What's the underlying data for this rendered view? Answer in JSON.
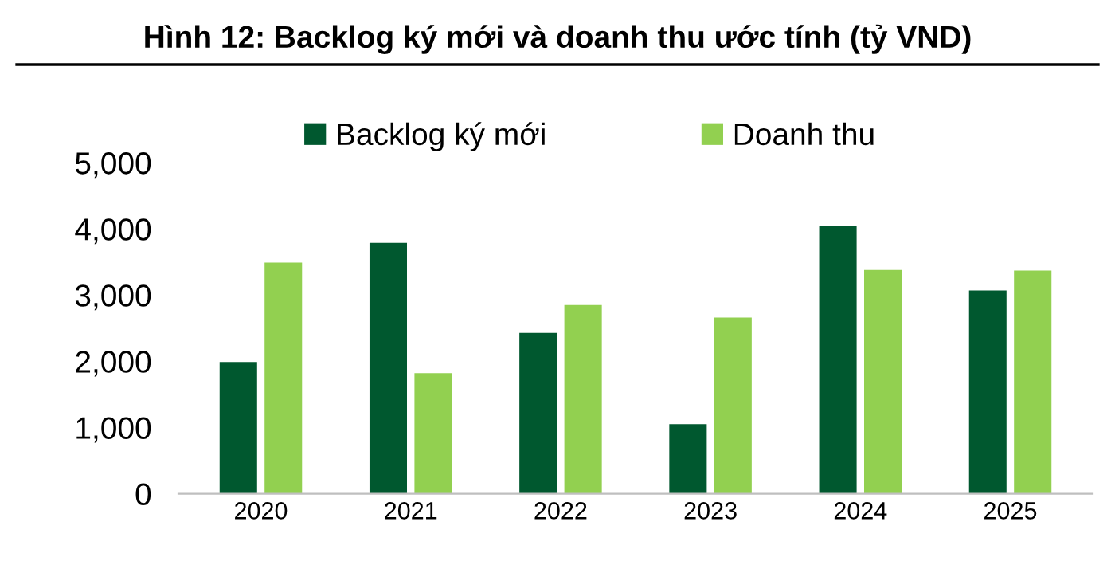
{
  "chart_data": {
    "type": "bar",
    "title": "Hình 12: Backlog ký mới và doanh thu ước tính (tỷ VND)",
    "categories": [
      "2020",
      "2021",
      "2022",
      "2023",
      "2024",
      "2025"
    ],
    "series": [
      {
        "name": "Backlog ký mới",
        "color": "#00582f",
        "values": [
          1990,
          3790,
          2430,
          1050,
          4040,
          3070
        ]
      },
      {
        "name": "Doanh thu",
        "color": "#92d050",
        "values": [
          3490,
          1820,
          2850,
          2660,
          3380,
          3370
        ]
      }
    ],
    "ylim": [
      0,
      5000
    ],
    "yticks": [
      {
        "value": 0,
        "label": "0"
      },
      {
        "value": 1000,
        "label": "1,000"
      },
      {
        "value": 2000,
        "label": "2,000"
      },
      {
        "value": 3000,
        "label": "3,000"
      },
      {
        "value": 4000,
        "label": "4,000"
      },
      {
        "value": 5000,
        "label": "5,000"
      }
    ],
    "grid": false,
    "legend": "top"
  }
}
